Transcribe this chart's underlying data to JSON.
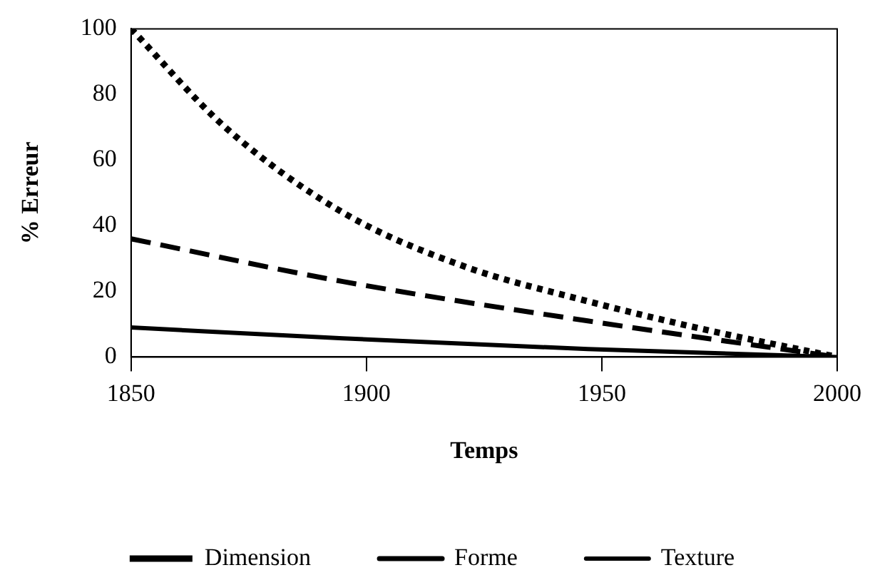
{
  "chart_data": {
    "type": "line",
    "xlabel": "Temps",
    "ylabel": "% Erreur",
    "xlim": [
      1850,
      2000
    ],
    "xticks": [
      1850,
      1900,
      1950,
      2000
    ],
    "ylim": [
      0,
      100
    ],
    "yticks": [
      0,
      20,
      40,
      60,
      80,
      100
    ],
    "grid": false,
    "legend": "bottom",
    "marker": "none",
    "series": [
      {
        "name": "Dimension",
        "color": "#000000",
        "line_style": "dotted",
        "x": [
          1850,
          1870,
          1895,
          1920,
          1947,
          1973,
          2000
        ],
        "values": [
          100,
          70,
          44,
          28,
          17,
          8,
          0
        ]
      },
      {
        "name": "Forme",
        "color": "#000000",
        "line_style": "dashed",
        "x": [
          1850,
          1895,
          1947,
          2000
        ],
        "values": [
          36,
          23,
          11,
          0
        ]
      },
      {
        "name": "Texture",
        "color": "#000000",
        "line_style": "solid",
        "x": [
          1850,
          1895,
          1947,
          2000
        ],
        "values": [
          9,
          5.7,
          2.4,
          0
        ]
      }
    ]
  }
}
